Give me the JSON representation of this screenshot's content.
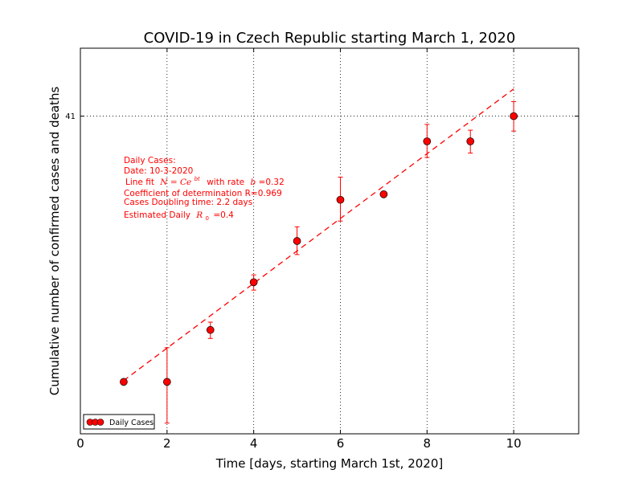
{
  "chart_data": {
    "type": "scatter",
    "title": "COVID-19 in Czech Republic starting March 1, 2020",
    "xlabel": "Time [days, starting March 1st, 2020]",
    "ylabel": "Cumulative number of confirmed cases and deaths",
    "xlim": [
      0,
      11.5
    ],
    "ylim": [
      1.8,
      80
    ],
    "yscale": "log",
    "x_ticks": [
      0,
      2,
      4,
      6,
      8,
      10
    ],
    "x_tick_labels": [
      "0",
      "2",
      "4",
      "6",
      "8",
      "10"
    ],
    "y_ticks": [
      41
    ],
    "y_tick_labels": [
      "41"
    ],
    "grid": true,
    "legend_position": "lower-left",
    "series": [
      {
        "name": "Daily Cases",
        "color": "#ff0000",
        "marker": "circle",
        "x": [
          1,
          2,
          3,
          4,
          5,
          6,
          7,
          8,
          9,
          10
        ],
        "y": [
          3,
          3,
          5,
          8,
          12,
          18,
          19,
          32,
          32,
          41
        ],
        "err_low": [
          0.05,
          1,
          0.4,
          0.6,
          1.5,
          3.4,
          0.3,
          4.7,
          3.5,
          5.6
        ],
        "err_high": [
          0.05,
          1.2,
          0.4,
          0.6,
          1.8,
          4.5,
          0.3,
          5.8,
          3.7,
          6.3
        ]
      }
    ],
    "fit_line": {
      "style": "dashed",
      "color": "#ff0000",
      "x": [
        1,
        10
      ],
      "y": [
        3.04,
        53.6
      ]
    },
    "annotation": {
      "color": "#ff0000",
      "lines": [
        "Daily Cases:",
        "Date: 10-3-2020",
        "Line fit",
        "N = Ce",
        "bt",
        "with rate",
        "b",
        "=0.32",
        "Coefficient of determination R=0.969",
        "Cases Doubling time: 2.2 days",
        "Estimated Daily",
        "R",
        "0",
        "=0.4"
      ]
    }
  }
}
